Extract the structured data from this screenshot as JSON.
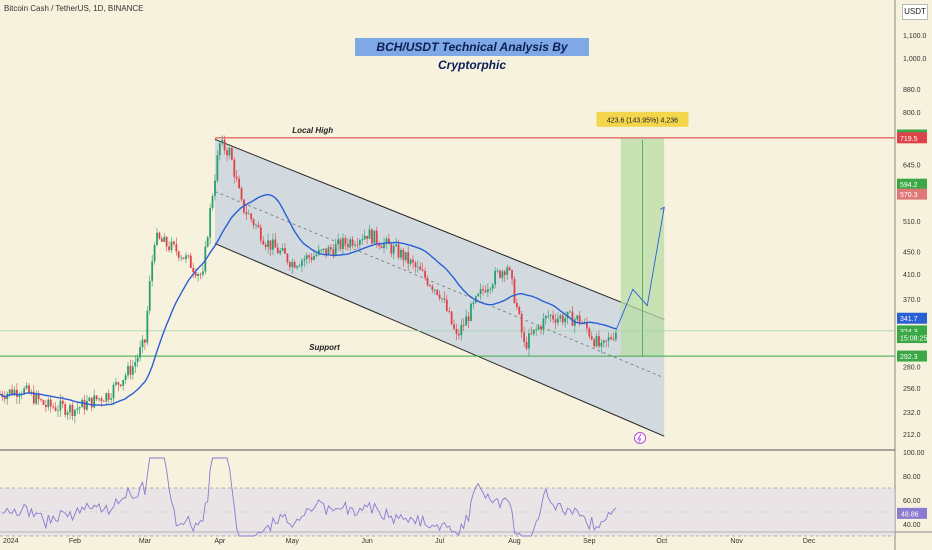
{
  "header": {
    "symbol_line": "Bitcoin Cash / TetherUS, 1D, BINANCE",
    "title": "BCH/USDT Technical Analysis By Cryptorphic",
    "currency": "USDT"
  },
  "colors": {
    "background": "#f7f2dd",
    "candle_up": "#2a9d6f",
    "candle_down": "#e0424a",
    "moving_average": "#2a5fd6",
    "channel_fill": "#b9c9e3",
    "target_zone": "#b9dca6",
    "resistance_line": "#e0323c",
    "support_line": "#3aa845",
    "rsi_line": "#8a7ad0"
  },
  "chart_data": {
    "type": "candlestick",
    "scale": "log",
    "ylim": [
      200,
      1250
    ],
    "x_axis_labels": [
      "2024",
      "Feb",
      "Mar",
      "Apr",
      "May",
      "Jun",
      "Jul",
      "Aug",
      "Sep",
      "Oct",
      "Nov",
      "Dec"
    ],
    "y_axis_labels": [
      "1,100.0",
      "1,000.0",
      "880.0",
      "800.0",
      "645.0",
      "510.0",
      "450.0",
      "410.0",
      "370.0",
      "280.0",
      "256.0",
      "232.0",
      "212.0"
    ],
    "price_badges": [
      {
        "label": "727.9",
        "color": "#3aa845"
      },
      {
        "label": "719.5",
        "color": "#e0424a"
      },
      {
        "label": "594.2",
        "color": "#3aa845"
      },
      {
        "label": "570.3",
        "color": "#e07878"
      },
      {
        "label": "341.7",
        "color": "#2a5fd6"
      },
      {
        "label": "324.3",
        "color": "#3aa845"
      },
      {
        "label": "15:08:25",
        "color": "#3aa845"
      },
      {
        "label": "292.3",
        "color": "#3aa845"
      }
    ],
    "annotations": {
      "local_high_label": "Local High",
      "local_high_price": 719.5,
      "support_label": "Support",
      "support_price": 292.3,
      "target_label": "423.6 (143.95%) 4,236"
    },
    "price_anchors": [
      [
        "2024-01-01",
        250
      ],
      [
        "2024-01-10",
        255
      ],
      [
        "2024-01-20",
        238
      ],
      [
        "2024-02-01",
        235
      ],
      [
        "2024-02-15",
        250
      ],
      [
        "2024-02-25",
        280
      ],
      [
        "2024-03-01",
        310
      ],
      [
        "2024-03-05",
        475
      ],
      [
        "2024-03-15",
        450
      ],
      [
        "2024-03-25",
        405
      ],
      [
        "2024-04-01",
        700
      ],
      [
        "2024-04-05",
        680
      ],
      [
        "2024-04-10",
        545
      ],
      [
        "2024-04-20",
        470
      ],
      [
        "2024-05-01",
        430
      ],
      [
        "2024-05-15",
        450
      ],
      [
        "2024-06-01",
        485
      ],
      [
        "2024-06-15",
        445
      ],
      [
        "2024-07-01",
        380
      ],
      [
        "2024-07-08",
        315
      ],
      [
        "2024-07-20",
        390
      ],
      [
        "2024-07-29",
        425
      ],
      [
        "2024-08-05",
        305
      ],
      [
        "2024-08-15",
        345
      ],
      [
        "2024-08-28",
        340
      ],
      [
        "2024-09-06",
        300
      ],
      [
        "2024-09-12",
        325
      ]
    ],
    "channel": {
      "upper_start": [
        "2024-03-30",
        715
      ],
      "upper_end": [
        "2024-10-02",
        340
      ],
      "lower_start": [
        "2024-03-30",
        465
      ],
      "lower_end": [
        "2024-10-02",
        210
      ]
    },
    "target_zone": {
      "x_start": "2024-09-14",
      "x_end": "2024-10-02",
      "low": 292.3,
      "high": 719.5
    },
    "projection": [
      [
        "2024-09-12",
        325
      ],
      [
        "2024-09-19",
        385
      ],
      [
        "2024-09-25",
        360
      ],
      [
        "2024-10-02",
        540
      ]
    ],
    "rsi": {
      "ylim": [
        35,
        100
      ],
      "y_axis_labels": [
        "100.00",
        "80.00",
        "60.00",
        "40.00"
      ],
      "upper_band": 70,
      "lower_band": 30,
      "current_label": "48.86"
    }
  }
}
